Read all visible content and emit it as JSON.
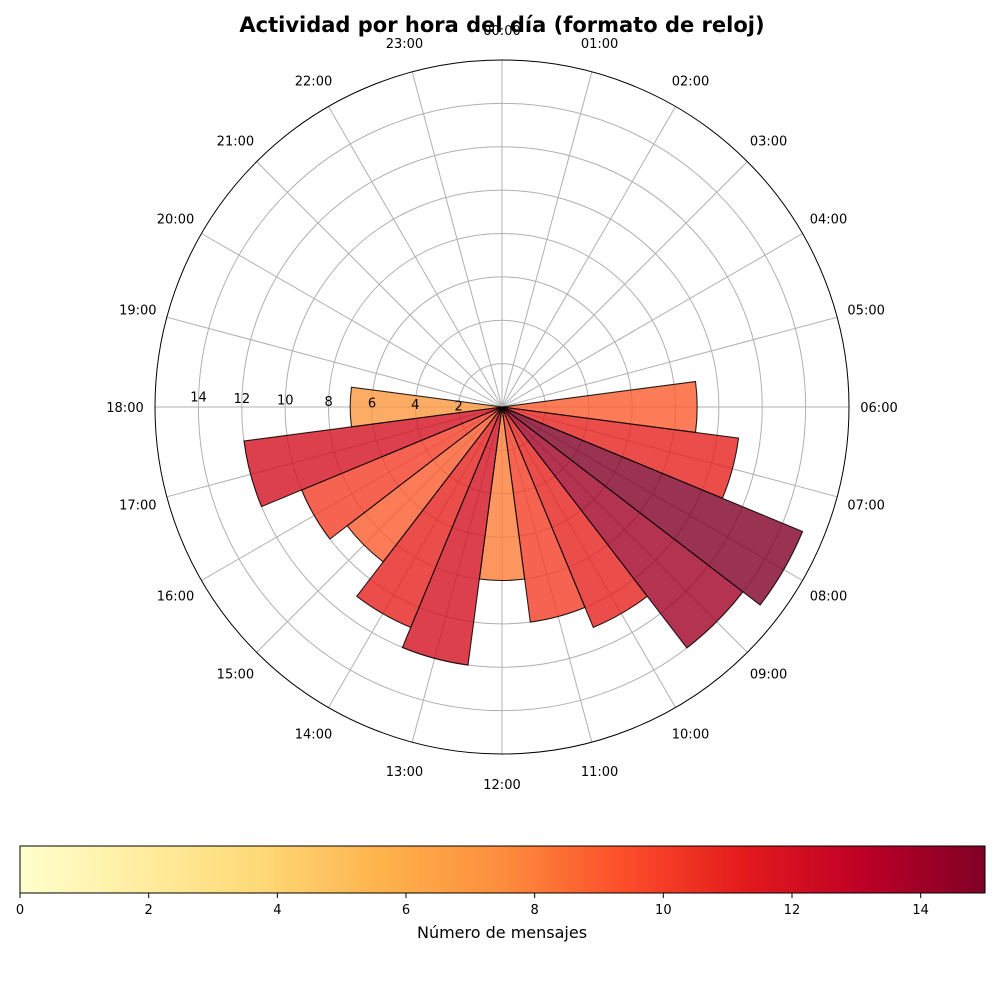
{
  "chart_data": {
    "type": "polar-bar",
    "title": "Actividad por hora del día (formato de reloj)",
    "direction": "clockwise",
    "zero_at": "top",
    "hour_labels": [
      "00:00",
      "01:00",
      "02:00",
      "03:00",
      "04:00",
      "05:00",
      "06:00",
      "07:00",
      "08:00",
      "09:00",
      "10:00",
      "11:00",
      "12:00",
      "13:00",
      "14:00",
      "15:00",
      "16:00",
      "17:00",
      "18:00",
      "19:00",
      "20:00",
      "21:00",
      "22:00",
      "23:00"
    ],
    "values": [
      0,
      0,
      0,
      0,
      0,
      0,
      9,
      11,
      15,
      14,
      11,
      10,
      8,
      12,
      11,
      9,
      10,
      12,
      7,
      0,
      0,
      0,
      0,
      0
    ],
    "radial_ticks": [
      2,
      4,
      6,
      8,
      10,
      12,
      14
    ],
    "radial_tick_labels": [
      "2",
      "4",
      "6",
      "8",
      "10",
      "12",
      "14"
    ],
    "rmax": 16,
    "grid": true,
    "colorbar": {
      "label": "Número de mensajes",
      "min": 0,
      "max": 15,
      "ticks": [
        0,
        2,
        4,
        6,
        8,
        10,
        12,
        14
      ],
      "tick_labels": [
        "0",
        "2",
        "4",
        "6",
        "8",
        "10",
        "12",
        "14"
      ],
      "colormap": "YlOrRd",
      "stops": [
        "#ffffcc",
        "#ffeda0",
        "#fed976",
        "#feb24c",
        "#fd8d3c",
        "#fc4e2a",
        "#e31a1c",
        "#bd0026",
        "#800026"
      ]
    }
  }
}
